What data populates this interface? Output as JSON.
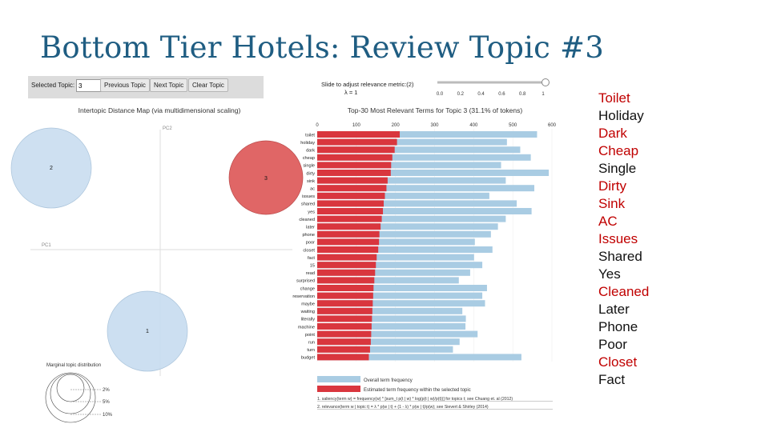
{
  "slide_title": "Bottom Tier Hotels: Review Topic #3",
  "controls": {
    "selected_topic_label": "Selected Topic:",
    "selected_topic_value": "3",
    "previous_button": "Previous Topic",
    "next_button": "Next Topic",
    "clear_button": "Clear Topic",
    "slider_label": "Slide to adjust relevance metric:(2)",
    "lambda_label": "λ = 1",
    "slider_ticks": [
      "0.0",
      "0.2",
      "0.4",
      "0.6",
      "0.8",
      "1"
    ],
    "slider_value": 1.0
  },
  "colors": {
    "title": "#1f5d82",
    "overall": "#a9cce3",
    "topic": "#d9363e",
    "highlight_word": "#c00000",
    "normal_word": "#111111",
    "circle_default": "#c6dbef",
    "circle_selected": "#e06666"
  },
  "chart_data": [
    {
      "type": "scatter",
      "title": "Intertopic Distance Map (via multidimensional scaling)",
      "xlabel": "PC1",
      "ylabel": "PC2",
      "topics": [
        {
          "label": "1",
          "selected": false
        },
        {
          "label": "2",
          "selected": false
        },
        {
          "label": "3",
          "selected": true
        }
      ],
      "legend_title": "Marginal topic distribution",
      "legend_sizes": [
        "2%",
        "5%",
        "10%"
      ]
    },
    {
      "type": "bar",
      "title": "Top-30 Most Relevant Terms for Topic 3 (31.1% of tokens)",
      "xlim": [
        0,
        600
      ],
      "xticks": [
        "0",
        "100",
        "200",
        "300",
        "400",
        "500",
        "600"
      ],
      "categories": [
        "toilet",
        "holiday",
        "dark",
        "cheap",
        "single",
        "dirty",
        "sink",
        "ac",
        "issues",
        "shared",
        "yes",
        "cleaned",
        "later",
        "phone",
        "poor",
        "closet",
        "fact",
        "15",
        "read",
        "surprised",
        "change",
        "reservation",
        "maybe",
        "waiting",
        "literally",
        "machine",
        "point",
        "run",
        "turn",
        "budget"
      ],
      "series": [
        {
          "name": "Overall term frequency",
          "values": [
            562,
            485,
            519,
            546,
            470,
            592,
            482,
            555,
            440,
            510,
            548,
            482,
            462,
            444,
            403,
            448,
            401,
            422,
            391,
            362,
            434,
            422,
            429,
            371,
            380,
            379,
            410,
            364,
            347,
            522
          ]
        },
        {
          "name": "Estimated term frequency within the selected topic",
          "values": [
            211,
            204,
            198,
            192,
            189,
            188,
            180,
            177,
            173,
            170,
            168,
            165,
            162,
            159,
            158,
            156,
            152,
            150,
            148,
            146,
            144,
            143,
            142,
            141,
            140,
            139,
            138,
            137,
            135,
            132
          ]
        }
      ],
      "footnotes": [
        "1. saliency(term w) = frequency(w) * [sum_t p(t | w) * log(p(t | w)/p(t))] for topics t; see Chuang et. al (2012)",
        "2. relevance(term w | topic t) = λ * p(w | t) + (1 - λ) * p(w | t)/p(w); see Sievert & Shirley (2014)"
      ]
    }
  ],
  "term_list": [
    {
      "text": "Toilet",
      "highlight": true
    },
    {
      "text": "Holiday",
      "highlight": false
    },
    {
      "text": "Dark",
      "highlight": true
    },
    {
      "text": "Cheap",
      "highlight": true
    },
    {
      "text": "Single",
      "highlight": false
    },
    {
      "text": "Dirty",
      "highlight": true
    },
    {
      "text": "Sink",
      "highlight": true
    },
    {
      "text": "AC",
      "highlight": true
    },
    {
      "text": "Issues",
      "highlight": true
    },
    {
      "text": "Shared",
      "highlight": false
    },
    {
      "text": "Yes",
      "highlight": false
    },
    {
      "text": "Cleaned",
      "highlight": true
    },
    {
      "text": "Later",
      "highlight": false
    },
    {
      "text": "Phone",
      "highlight": false
    },
    {
      "text": "Poor",
      "highlight": false
    },
    {
      "text": "Closet",
      "highlight": true
    },
    {
      "text": "Fact",
      "highlight": false
    }
  ]
}
